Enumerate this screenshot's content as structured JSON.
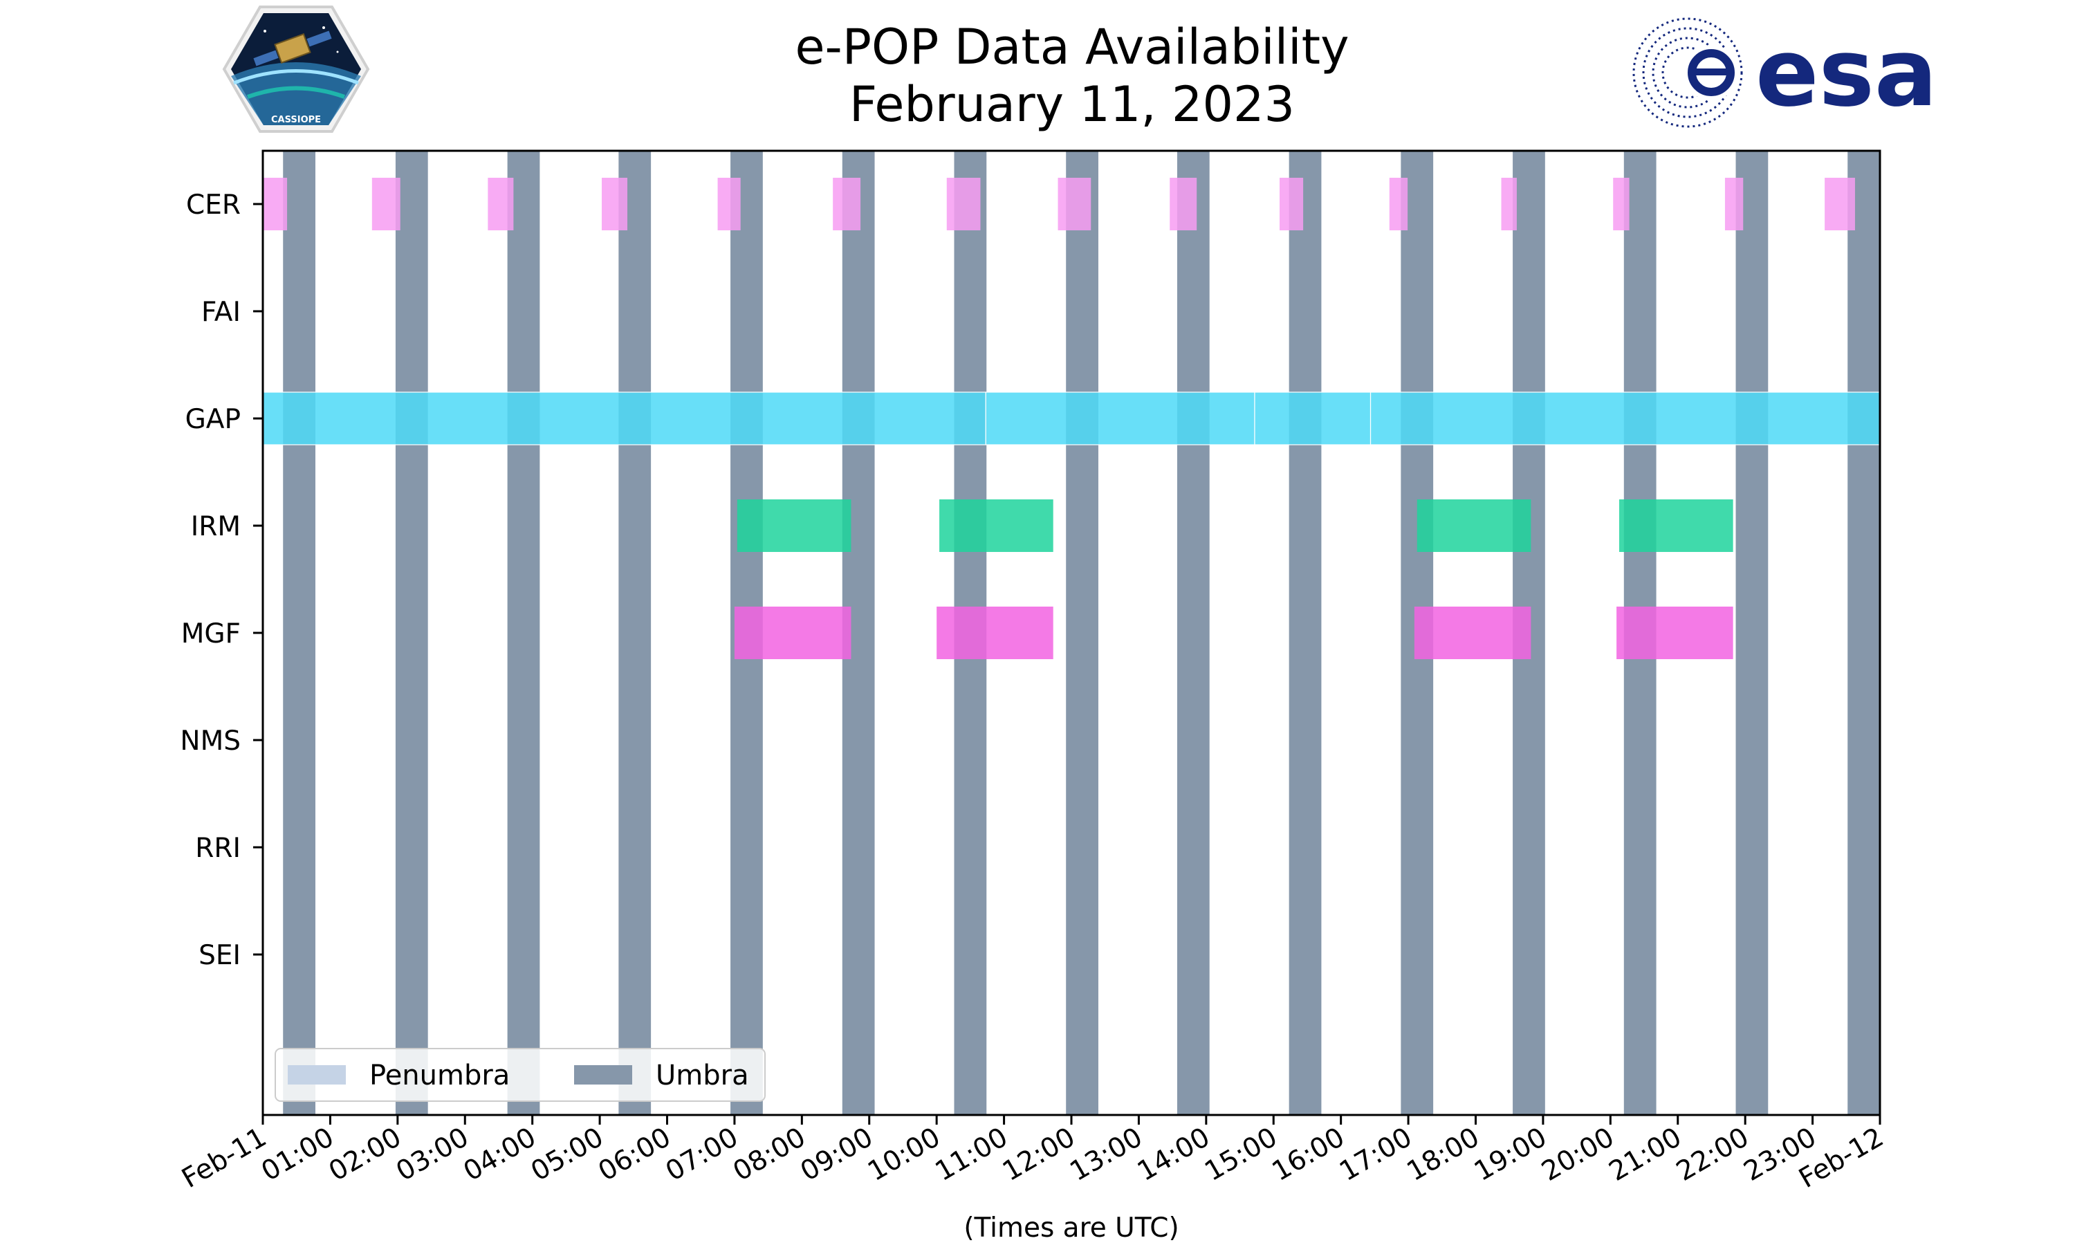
{
  "chart_data": {
    "type": "timeline",
    "title": "e-POP Data Availability",
    "subtitle": "February 11, 2023",
    "xlabel": "(Times are UTC)",
    "ylabel": "",
    "x_unit": "hours UTC",
    "xlim": [
      0,
      24
    ],
    "x_ticks": [
      0,
      1,
      2,
      3,
      4,
      5,
      6,
      7,
      8,
      9,
      10,
      11,
      12,
      13,
      14,
      15,
      16,
      17,
      18,
      19,
      20,
      21,
      22,
      23,
      24
    ],
    "x_tick_labels": [
      "Feb-11",
      "01:00",
      "02:00",
      "03:00",
      "04:00",
      "05:00",
      "06:00",
      "07:00",
      "08:00",
      "09:00",
      "10:00",
      "11:00",
      "12:00",
      "13:00",
      "14:00",
      "15:00",
      "16:00",
      "17:00",
      "18:00",
      "19:00",
      "20:00",
      "21:00",
      "22:00",
      "23:00",
      "Feb-12"
    ],
    "categories": [
      "CER",
      "FAI",
      "GAP",
      "IRM",
      "MGF",
      "NMS",
      "RRI",
      "SEI"
    ],
    "legend": {
      "position": "lower-left",
      "entries": [
        {
          "label": "Penumbra",
          "color": "#c5d3e6"
        },
        {
          "label": "Umbra",
          "color": "#8697aa"
        }
      ]
    },
    "umbra_intervals": [
      [
        0.3,
        0.78
      ],
      [
        1.97,
        2.45
      ],
      [
        3.63,
        4.11
      ],
      [
        5.28,
        5.76
      ],
      [
        6.94,
        7.42
      ],
      [
        8.6,
        9.08
      ],
      [
        10.26,
        10.74
      ],
      [
        11.92,
        12.4
      ],
      [
        13.57,
        14.05
      ],
      [
        15.23,
        15.71
      ],
      [
        16.89,
        17.37
      ],
      [
        18.55,
        19.03
      ],
      [
        20.2,
        20.68
      ],
      [
        21.86,
        22.34
      ],
      [
        23.52,
        24.0
      ]
    ],
    "series": [
      {
        "name": "CER",
        "color": "#f79cf2",
        "opacity": 0.85,
        "intervals": [
          [
            0,
            0.36
          ],
          [
            1.62,
            2.04
          ],
          [
            3.34,
            3.72
          ],
          [
            5.03,
            5.41
          ],
          [
            6.75,
            7.09
          ],
          [
            8.46,
            8.87
          ],
          [
            10.15,
            10.65
          ],
          [
            11.8,
            12.29
          ],
          [
            13.46,
            13.86
          ],
          [
            15.09,
            15.44
          ],
          [
            16.72,
            16.99
          ],
          [
            18.38,
            18.61
          ],
          [
            20.04,
            20.28
          ],
          [
            21.7,
            21.97
          ],
          [
            23.18,
            23.63
          ]
        ]
      },
      {
        "name": "FAI",
        "color": "#888888",
        "opacity": 0.85,
        "intervals": []
      },
      {
        "name": "GAP",
        "color": "#4dd9f7",
        "opacity": 0.85,
        "intervals": [
          [
            0,
            10.73
          ],
          [
            10.73,
            14.72
          ],
          [
            14.72,
            16.44
          ],
          [
            16.44,
            24
          ]
        ]
      },
      {
        "name": "IRM",
        "color": "#1ed49c",
        "opacity": 0.85,
        "intervals": [
          [
            7.04,
            8.73
          ],
          [
            10.04,
            11.73
          ],
          [
            17.13,
            18.82
          ],
          [
            20.13,
            21.82
          ]
        ]
      },
      {
        "name": "MGF",
        "color": "#f263e2",
        "opacity": 0.85,
        "intervals": [
          [
            7.0,
            8.73
          ],
          [
            10.0,
            11.73
          ],
          [
            17.09,
            18.82
          ],
          [
            20.09,
            21.82
          ]
        ]
      },
      {
        "name": "NMS",
        "color": "#888888",
        "opacity": 0.85,
        "intervals": []
      },
      {
        "name": "RRI",
        "color": "#888888",
        "opacity": 0.85,
        "intervals": []
      },
      {
        "name": "SEI",
        "color": "#888888",
        "opacity": 0.85,
        "intervals": []
      }
    ]
  },
  "logos": {
    "left": {
      "label": "CASSIOPE"
    },
    "right": {
      "label": "esa",
      "color": "#14287d"
    }
  }
}
